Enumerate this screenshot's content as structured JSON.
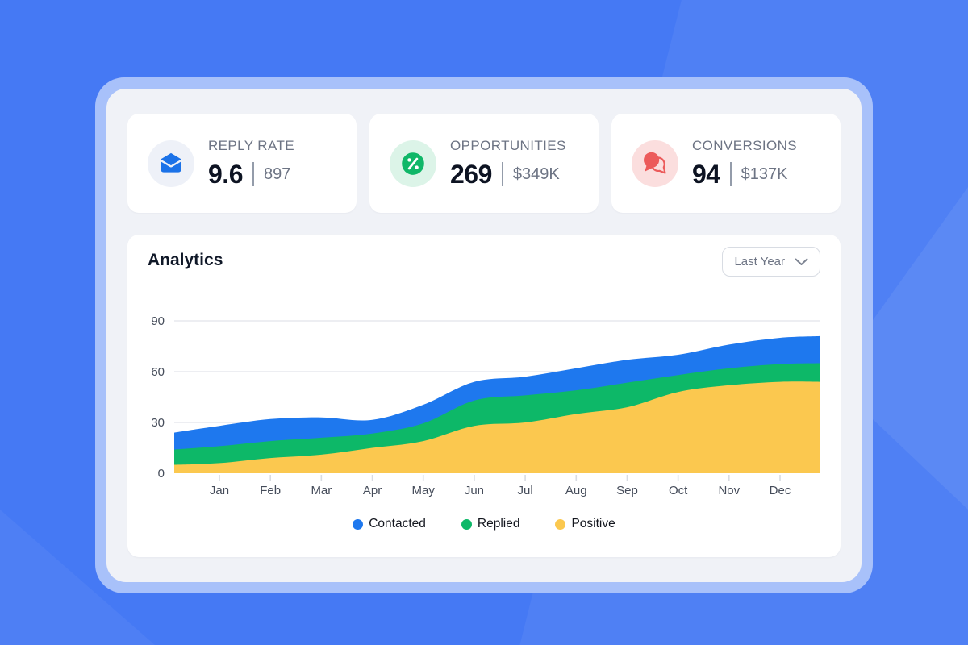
{
  "colors": {
    "background": "#4579f4",
    "frame": "#a8c1fa",
    "panel": "#f0f2f7",
    "card": "#ffffff",
    "grid": "#e7e9ee",
    "axis_text": "#454c5a",
    "tick": "#d9dce2",
    "divider": "#949caa"
  },
  "stats": [
    {
      "label": "REPLY RATE",
      "value": "9.6",
      "secondary": "897",
      "icon": "mail-icon",
      "icon_color": "#1b72e8",
      "icon_bg": "#eef1f8"
    },
    {
      "label": "OPPORTUNITIES",
      "value": "269",
      "secondary": "$349K",
      "icon": "percent-icon",
      "icon_color": "#10b768",
      "icon_bg": "#dcf4e8"
    },
    {
      "label": "CONVERSIONS",
      "value": "94",
      "secondary": "$137K",
      "icon": "chat-icon",
      "icon_color": "#ec5b5b",
      "icon_bg": "#fbdede"
    }
  ],
  "analytics": {
    "title": "Analytics",
    "range_selector": {
      "value": "Last Year"
    }
  },
  "chart_data": {
    "type": "area",
    "stacked": true,
    "title": "Analytics",
    "categories": [
      "Jan",
      "Feb",
      "Mar",
      "Apr",
      "May",
      "Jun",
      "Jul",
      "Aug",
      "Sep",
      "Oct",
      "Nov",
      "Dec"
    ],
    "series": [
      {
        "name": "Positive",
        "color": "#fbc84f",
        "values": [
          6,
          9,
          11,
          15,
          19,
          28,
          30,
          35,
          39,
          48,
          52,
          54
        ],
        "edge_start": 5,
        "edge_end": 54
      },
      {
        "name": "Replied",
        "color": "#0db868",
        "values": [
          10,
          10,
          10,
          8.5,
          10.5,
          15,
          16,
          14,
          14.5,
          10,
          10,
          10.5
        ],
        "edge_start": 9,
        "edge_end": 11
      },
      {
        "name": "Contacted",
        "color": "#1e78ee",
        "values": [
          12,
          13,
          12,
          8,
          11,
          11,
          11,
          13,
          13.5,
          12,
          14,
          15.5
        ],
        "edge_start": 10,
        "edge_end": 16
      }
    ],
    "legend_order": [
      "Contacted",
      "Replied",
      "Positive"
    ],
    "legend_position": "bottom",
    "yticks": [
      0,
      30,
      60,
      90
    ],
    "ylim": [
      0,
      90
    ],
    "grid": true
  }
}
